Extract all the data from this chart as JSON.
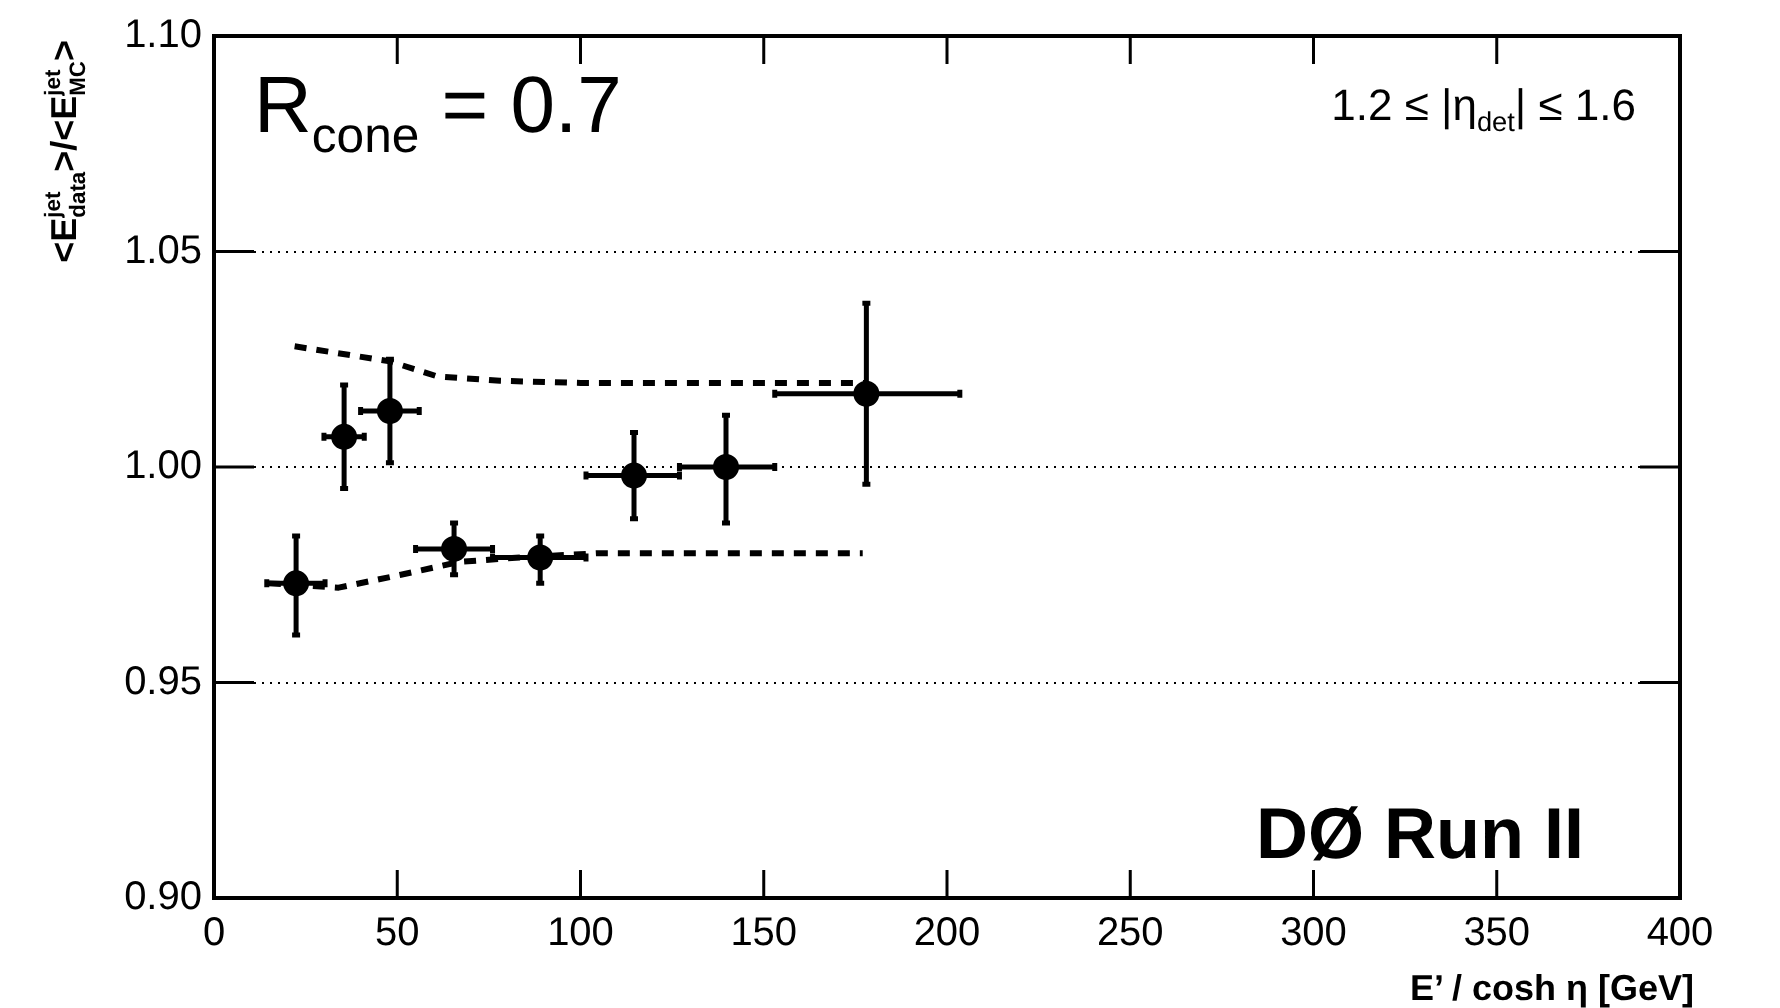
{
  "chart_data": {
    "type": "scatter",
    "xlabel": "E’ / cosh η [GeV]",
    "ylabel": "<E$^{jet}$$_{data}$>/<E$^{jet}$$_{MC}$>",
    "annotations": [
      "R$_{cone}$ = 0.7",
      "1.2 ≤ |η$_{det}$| ≤ 1.6",
      "DØ Run II"
    ],
    "xlim": [
      0,
      400
    ],
    "xticks": [
      0,
      50,
      100,
      150,
      200,
      250,
      300,
      350,
      400
    ],
    "ylim": [
      0.9,
      1.1
    ],
    "yticks": [
      {
        "value": 0.9,
        "label": "0.90"
      },
      0.95,
      {
        "value": 1.0,
        "label": "1.00"
      },
      1.05,
      {
        "value": 1.1,
        "label": "1.10"
      }
    ],
    "grid": "y",
    "legend": false,
    "series": [
      {
        "type": "scatter",
        "color": "#000000",
        "marker": "circle",
        "x": [
          22.4,
          35.5,
          48,
          65.5,
          89,
          114.6,
          139.7,
          178
        ],
        "values": [
          0.973,
          1.007,
          1.013,
          0.981,
          0.979,
          0.998,
          1.0,
          1.017
        ],
        "errors": [
          [
            0.961,
            0.984
          ],
          [
            0.995,
            1.019
          ],
          [
            1.001,
            1.025
          ],
          [
            0.975,
            0.987
          ],
          [
            0.973,
            0.984
          ],
          [
            0.988,
            1.008
          ],
          [
            0.987,
            1.012
          ],
          [
            0.996,
            1.038
          ]
        ],
        "xerrors": [
          [
            14.4,
            30.3
          ],
          [
            30,
            41
          ],
          [
            40,
            56
          ],
          [
            55,
            76
          ],
          [
            76,
            101.5
          ],
          [
            101.5,
            127
          ],
          [
            127,
            153
          ],
          [
            153,
            203.5
          ]
        ]
      },
      {
        "type": "line",
        "color": "#000000",
        "marker": "none",
        "line_style": "dashed",
        "x": [
          22,
          48,
          61,
          78,
          100,
          140,
          178
        ],
        "values": [
          1.028,
          1.0245,
          1.021,
          1.02,
          1.0195,
          1.0195,
          1.0195
        ]
      },
      {
        "type": "line",
        "color": "#000000",
        "marker": "none",
        "line_style": "dashed",
        "x": [
          15,
          34,
          51,
          67,
          83.5,
          105,
          140,
          177
        ],
        "values": [
          0.973,
          0.972,
          0.975,
          0.978,
          0.979,
          0.98,
          0.98,
          0.98
        ]
      }
    ]
  }
}
